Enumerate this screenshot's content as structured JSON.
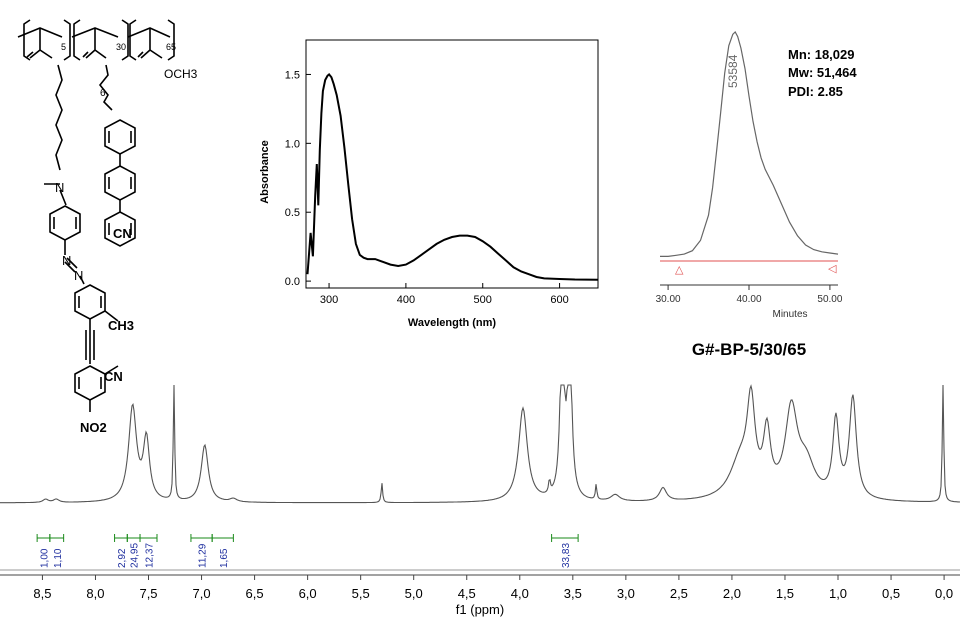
{
  "structure": {
    "subscripts": [
      "5",
      "30",
      "65"
    ],
    "labels": {
      "ester_methyl": "OCH3",
      "spacer": "6",
      "cn_top": "CN",
      "methyl_azo": "CH3",
      "cn_bottom": "CN",
      "nitro": "NO2",
      "amine_n": "N",
      "azo_n1": "N",
      "azo_n2": "N"
    }
  },
  "sample_name": "G#-BP-5/30/65",
  "gpc_stats": [
    "Mn: 18,029",
    "Mw: 51,464",
    "PDI: 2.85"
  ],
  "colors": {
    "trace": "#000000",
    "gray_trace": "#666666",
    "integral": "#1a8a1a",
    "integral_text": "#1f2f9f",
    "baseline_red": "#e05050"
  },
  "chart_data": [
    {
      "id": "uv",
      "type": "line",
      "title": "",
      "xlabel": "Wavelength (nm)",
      "ylabel": "Absorbance",
      "xlim": [
        270,
        650
      ],
      "ylim": [
        -0.05,
        1.75
      ],
      "xticks": [
        300,
        400,
        500,
        600
      ],
      "xtick_labels": [
        "300",
        "400",
        "500",
        "600"
      ],
      "yticks": [
        0.0,
        0.5,
        1.0,
        1.5
      ],
      "ytick_labels": [
        "0.0",
        "0.5",
        "1.0",
        "1.5"
      ],
      "series": [
        {
          "name": "absorbance",
          "x": [
            272,
            276,
            279,
            282,
            284,
            286,
            288,
            290,
            292,
            295,
            298,
            300,
            303,
            306,
            310,
            315,
            320,
            325,
            330,
            335,
            340,
            345,
            350,
            360,
            370,
            380,
            390,
            400,
            410,
            420,
            430,
            440,
            450,
            460,
            470,
            480,
            490,
            500,
            510,
            520,
            530,
            540,
            550,
            560,
            570,
            580,
            600,
            620,
            650
          ],
          "y": [
            0.05,
            0.35,
            0.18,
            0.62,
            0.85,
            0.55,
            0.95,
            1.22,
            1.38,
            1.46,
            1.49,
            1.5,
            1.48,
            1.43,
            1.35,
            1.2,
            0.97,
            0.7,
            0.45,
            0.27,
            0.19,
            0.17,
            0.16,
            0.16,
            0.14,
            0.12,
            0.11,
            0.12,
            0.15,
            0.19,
            0.23,
            0.27,
            0.3,
            0.32,
            0.33,
            0.33,
            0.32,
            0.29,
            0.25,
            0.2,
            0.15,
            0.1,
            0.07,
            0.05,
            0.03,
            0.02,
            0.015,
            0.012,
            0.01
          ]
        }
      ]
    },
    {
      "id": "gpc",
      "type": "line",
      "xlabel": "Minutes",
      "xlim": [
        29,
        51
      ],
      "ylim": [
        0,
        1.0
      ],
      "xticks": [
        30,
        40,
        50
      ],
      "xtick_labels": [
        "30.00",
        "40.00",
        "50.00"
      ],
      "peak_label": "53584",
      "series": [
        {
          "name": "gpc_trace",
          "x": [
            29,
            30,
            31,
            32,
            33,
            34,
            35,
            35.5,
            36,
            36.5,
            37,
            37.5,
            38,
            38.3,
            38.6,
            39,
            39.5,
            40,
            40.5,
            41,
            41.5,
            42,
            43,
            44,
            45,
            46,
            47,
            48,
            49,
            50,
            51
          ],
          "y": [
            0.02,
            0.02,
            0.025,
            0.03,
            0.045,
            0.09,
            0.2,
            0.32,
            0.48,
            0.65,
            0.82,
            0.94,
            0.99,
            1.0,
            0.98,
            0.93,
            0.84,
            0.72,
            0.61,
            0.52,
            0.45,
            0.4,
            0.33,
            0.25,
            0.17,
            0.11,
            0.07,
            0.05,
            0.04,
            0.035,
            0.03
          ]
        }
      ]
    },
    {
      "id": "nmr",
      "type": "line",
      "xlabel": "f1 (ppm)",
      "xlim": [
        8.9,
        -0.15
      ],
      "xticks": [
        8.5,
        8.0,
        7.5,
        7.0,
        6.5,
        6.0,
        5.5,
        5.0,
        4.5,
        4.0,
        3.5,
        3.0,
        2.5,
        2.0,
        1.5,
        1.0,
        0.5,
        0.0
      ],
      "xtick_labels": [
        "8,5",
        "8,0",
        "7,5",
        "7,0",
        "6,5",
        "6,0",
        "5,5",
        "5,0",
        "4,5",
        "4,0",
        "3,5",
        "3,0",
        "2,5",
        "2,0",
        "1,5",
        "1,0",
        "0,5",
        "0,0"
      ],
      "peaks": [
        {
          "ppm": 8.47,
          "h": 0.03,
          "w": 0.03
        },
        {
          "ppm": 8.37,
          "h": 0.03,
          "w": 0.03
        },
        {
          "ppm": 7.65,
          "h": 0.86,
          "w": 0.045
        },
        {
          "ppm": 7.52,
          "h": 0.55,
          "w": 0.035
        },
        {
          "ppm": 7.26,
          "h": 1.5,
          "w": 0.006
        },
        {
          "ppm": 6.97,
          "h": 0.52,
          "w": 0.04
        },
        {
          "ppm": 6.7,
          "h": 0.03,
          "w": 0.04
        },
        {
          "ppm": 5.3,
          "h": 0.18,
          "w": 0.008
        },
        {
          "ppm": 3.97,
          "h": 0.85,
          "w": 0.05
        },
        {
          "ppm": 3.72,
          "h": 0.12,
          "w": 0.01
        },
        {
          "ppm": 3.6,
          "h": 1.6,
          "w": 0.022
        },
        {
          "ppm": 3.53,
          "h": 1.6,
          "w": 0.022
        },
        {
          "ppm": 3.28,
          "h": 0.14,
          "w": 0.008
        },
        {
          "ppm": 3.1,
          "h": 0.06,
          "w": 0.05
        },
        {
          "ppm": 2.65,
          "h": 0.12,
          "w": 0.04
        },
        {
          "ppm": 1.92,
          "h": 0.35,
          "w": 0.12
        },
        {
          "ppm": 1.82,
          "h": 0.78,
          "w": 0.045
        },
        {
          "ppm": 1.67,
          "h": 0.55,
          "w": 0.04
        },
        {
          "ppm": 1.44,
          "h": 0.78,
          "w": 0.07
        },
        {
          "ppm": 1.3,
          "h": 0.3,
          "w": 0.1
        },
        {
          "ppm": 1.02,
          "h": 0.7,
          "w": 0.035
        },
        {
          "ppm": 0.86,
          "h": 0.92,
          "w": 0.04
        },
        {
          "ppm": 0.01,
          "h": 1.6,
          "w": 0.006
        }
      ],
      "integrals": [
        {
          "from": 8.55,
          "to": 8.43,
          "value": "1,00"
        },
        {
          "from": 8.43,
          "to": 8.3,
          "value": "1,10"
        },
        {
          "from": 7.82,
          "to": 7.7,
          "value": "2,92"
        },
        {
          "from": 7.7,
          "to": 7.58,
          "value": "24,95"
        },
        {
          "from": 7.58,
          "to": 7.42,
          "value": "12,37"
        },
        {
          "from": 7.1,
          "to": 6.9,
          "value": "11,29"
        },
        {
          "from": 6.9,
          "to": 6.7,
          "value": "1,65"
        },
        {
          "from": 3.7,
          "to": 3.45,
          "value": "33,83"
        }
      ]
    }
  ]
}
